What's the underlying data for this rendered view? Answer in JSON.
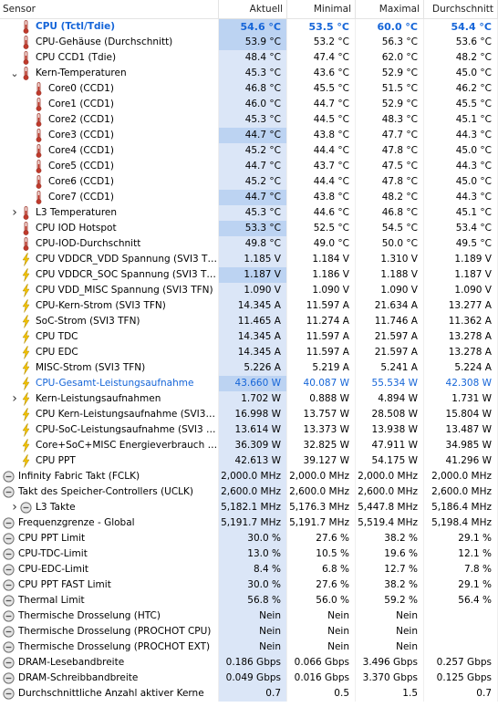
{
  "headers": {
    "sensor": "Sensor",
    "current": "Aktuell",
    "min": "Minimal",
    "max": "Maximal",
    "avg": "Durchschnitt"
  },
  "rows": [
    {
      "label": "CPU (Tctl/Tdie)",
      "icon": "thermometer-icon",
      "indent": 1,
      "cur": "54.6 °C",
      "min": "53.5 °C",
      "max": "60.0 °C",
      "avg": "54.4 °C",
      "style": "bold"
    },
    {
      "label": "CPU-Gehäuse (Durchschnitt)",
      "icon": "thermometer-icon",
      "indent": 1,
      "cur": "53.9 °C",
      "min": "53.2 °C",
      "max": "56.3 °C",
      "avg": "53.6 °C"
    },
    {
      "label": "CPU CCD1 (Tdie)",
      "icon": "thermometer-icon",
      "indent": 1,
      "cur": "48.4 °C",
      "min": "47.4 °C",
      "max": "62.0 °C",
      "avg": "48.2 °C"
    },
    {
      "label": "Kern-Temperaturen",
      "icon": "thermometer-icon",
      "indent": 1,
      "expander": "expanded",
      "cur": "45.3 °C",
      "min": "43.6 °C",
      "max": "52.9 °C",
      "avg": "45.0 °C"
    },
    {
      "label": "Core0 (CCD1)",
      "icon": "thermometer-icon",
      "indent": 2,
      "cur": "46.8 °C",
      "min": "45.5 °C",
      "max": "51.5 °C",
      "avg": "46.2 °C"
    },
    {
      "label": "Core1 (CCD1)",
      "icon": "thermometer-icon",
      "indent": 2,
      "cur": "46.0 °C",
      "min": "44.7 °C",
      "max": "52.9 °C",
      "avg": "45.5 °C"
    },
    {
      "label": "Core2 (CCD1)",
      "icon": "thermometer-icon",
      "indent": 2,
      "cur": "45.3 °C",
      "min": "44.5 °C",
      "max": "48.3 °C",
      "avg": "45.1 °C"
    },
    {
      "label": "Core3 (CCD1)",
      "icon": "thermometer-icon",
      "indent": 2,
      "cur": "44.7 °C",
      "min": "43.8 °C",
      "max": "47.7 °C",
      "avg": "44.3 °C"
    },
    {
      "label": "Core4 (CCD1)",
      "icon": "thermometer-icon",
      "indent": 2,
      "cur": "45.2 °C",
      "min": "44.4 °C",
      "max": "47.8 °C",
      "avg": "45.0 °C"
    },
    {
      "label": "Core5 (CCD1)",
      "icon": "thermometer-icon",
      "indent": 2,
      "cur": "44.7 °C",
      "min": "43.7 °C",
      "max": "47.5 °C",
      "avg": "44.3 °C"
    },
    {
      "label": "Core6 (CCD1)",
      "icon": "thermometer-icon",
      "indent": 2,
      "cur": "45.2 °C",
      "min": "44.4 °C",
      "max": "47.8 °C",
      "avg": "45.0 °C"
    },
    {
      "label": "Core7 (CCD1)",
      "icon": "thermometer-icon",
      "indent": 2,
      "cur": "44.7 °C",
      "min": "43.8 °C",
      "max": "48.2 °C",
      "avg": "44.3 °C"
    },
    {
      "label": "L3 Temperaturen",
      "icon": "thermometer-icon",
      "indent": 1,
      "expander": "collapsed",
      "cur": "45.3 °C",
      "min": "44.6 °C",
      "max": "46.8 °C",
      "avg": "45.1 °C"
    },
    {
      "label": "CPU IOD Hotspot",
      "icon": "thermometer-icon",
      "indent": 1,
      "cur": "53.3 °C",
      "min": "52.5 °C",
      "max": "54.5 °C",
      "avg": "53.4 °C"
    },
    {
      "label": "CPU-IOD-Durchschnitt",
      "icon": "thermometer-icon",
      "indent": 1,
      "cur": "49.8 °C",
      "min": "49.0 °C",
      "max": "50.0 °C",
      "avg": "49.5 °C"
    },
    {
      "label": "CPU VDDCR_VDD Spannung (SVI3 TFN)",
      "icon": "lightning-icon",
      "indent": 1,
      "cur": "1.185 V",
      "min": "1.184 V",
      "max": "1.310 V",
      "avg": "1.189 V"
    },
    {
      "label": "CPU VDDCR_SOC Spannung (SVI3 TFN)",
      "icon": "lightning-icon",
      "indent": 1,
      "cur": "1.187 V",
      "min": "1.186 V",
      "max": "1.188 V",
      "avg": "1.187 V"
    },
    {
      "label": "CPU VDD_MISC Spannung (SVI3 TFN)",
      "icon": "lightning-icon",
      "indent": 1,
      "cur": "1.090 V",
      "min": "1.090 V",
      "max": "1.090 V",
      "avg": "1.090 V"
    },
    {
      "label": "CPU-Kern-Strom (SVI3 TFN)",
      "icon": "lightning-icon",
      "indent": 1,
      "cur": "14.345 A",
      "min": "11.597 A",
      "max": "21.634 A",
      "avg": "13.277 A"
    },
    {
      "label": "SoC-Strom (SVI3 TFN)",
      "icon": "lightning-icon",
      "indent": 1,
      "cur": "11.465 A",
      "min": "11.274 A",
      "max": "11.746 A",
      "avg": "11.362 A"
    },
    {
      "label": "CPU TDC",
      "icon": "lightning-icon",
      "indent": 1,
      "cur": "14.345 A",
      "min": "11.597 A",
      "max": "21.597 A",
      "avg": "13.278 A"
    },
    {
      "label": "CPU EDC",
      "icon": "lightning-icon",
      "indent": 1,
      "cur": "14.345 A",
      "min": "11.597 A",
      "max": "21.597 A",
      "avg": "13.278 A"
    },
    {
      "label": "MISC-Strom (SVI3 TFN)",
      "icon": "lightning-icon",
      "indent": 1,
      "cur": "5.226 A",
      "min": "5.219 A",
      "max": "5.241 A",
      "avg": "5.224 A"
    },
    {
      "label": "CPU-Gesamt-Leistungsaufnahme",
      "icon": "lightning-icon",
      "indent": 1,
      "cur": "43.660 W",
      "min": "40.087 W",
      "max": "55.534 W",
      "avg": "42.308 W",
      "style": "blue"
    },
    {
      "label": "Kern-Leistungsaufnahmen",
      "icon": "lightning-icon",
      "indent": 1,
      "expander": "collapsed",
      "cur": "1.702 W",
      "min": "0.888 W",
      "max": "4.894 W",
      "avg": "1.731 W"
    },
    {
      "label": "CPU Kern-Leistungsaufnahme (SVI3 TFN)",
      "icon": "lightning-icon",
      "indent": 1,
      "cur": "16.998 W",
      "min": "13.757 W",
      "max": "28.508 W",
      "avg": "15.804 W"
    },
    {
      "label": "CPU-SoC-Leistungsaufnahme (SVI3 TFN)",
      "icon": "lightning-icon",
      "indent": 1,
      "cur": "13.614 W",
      "min": "13.373 W",
      "max": "13.938 W",
      "avg": "13.487 W"
    },
    {
      "label": "Core+SoC+MISC Energieverbrauch (S...",
      "icon": "lightning-icon",
      "indent": 1,
      "cur": "36.309 W",
      "min": "32.825 W",
      "max": "47.911 W",
      "avg": "34.985 W"
    },
    {
      "label": "CPU PPT",
      "icon": "lightning-icon",
      "indent": 1,
      "cur": "42.613 W",
      "min": "39.127 W",
      "max": "54.175 W",
      "avg": "41.296 W"
    },
    {
      "label": "Infinity Fabric Takt (FCLK)",
      "icon": "clock-icon",
      "indent": 0,
      "cur": "2,000.0 MHz",
      "min": "2,000.0 MHz",
      "max": "2,000.0 MHz",
      "avg": "2,000.0 MHz"
    },
    {
      "label": "Takt des Speicher-Controllers (UCLK)",
      "icon": "clock-icon",
      "indent": 0,
      "cur": "2,600.0 MHz",
      "min": "2,600.0 MHz",
      "max": "2,600.0 MHz",
      "avg": "2,600.0 MHz"
    },
    {
      "label": "L3 Takte",
      "icon": "clock-icon",
      "indent": 1,
      "expander": "collapsed",
      "cur": "5,182.1 MHz",
      "min": "5,176.3 MHz",
      "max": "5,447.8 MHz",
      "avg": "5,186.4 MHz"
    },
    {
      "label": "Frequenzgrenze - Global",
      "icon": "clock-icon",
      "indent": 0,
      "cur": "5,191.7 MHz",
      "min": "5,191.7 MHz",
      "max": "5,519.4 MHz",
      "avg": "5,198.4 MHz"
    },
    {
      "label": "CPU PPT Limit",
      "icon": "clock-icon",
      "indent": 0,
      "cur": "30.0 %",
      "min": "27.6 %",
      "max": "38.2 %",
      "avg": "29.1 %"
    },
    {
      "label": "CPU-TDC-Limit",
      "icon": "clock-icon",
      "indent": 0,
      "cur": "13.0 %",
      "min": "10.5 %",
      "max": "19.6 %",
      "avg": "12.1 %"
    },
    {
      "label": "CPU-EDC-Limit",
      "icon": "clock-icon",
      "indent": 0,
      "cur": "8.4 %",
      "min": "6.8 %",
      "max": "12.7 %",
      "avg": "7.8 %"
    },
    {
      "label": "CPU PPT FAST Limit",
      "icon": "clock-icon",
      "indent": 0,
      "cur": "30.0 %",
      "min": "27.6 %",
      "max": "38.2 %",
      "avg": "29.1 %"
    },
    {
      "label": "Thermal Limit",
      "icon": "clock-icon",
      "indent": 0,
      "cur": "56.8 %",
      "min": "56.0 %",
      "max": "59.2 %",
      "avg": "56.4 %"
    },
    {
      "label": "Thermische Drosselung (HTC)",
      "icon": "clock-icon",
      "indent": 0,
      "cur": "Nein",
      "min": "Nein",
      "max": "Nein",
      "avg": ""
    },
    {
      "label": "Thermische Drosselung (PROCHOT CPU)",
      "icon": "clock-icon",
      "indent": 0,
      "cur": "Nein",
      "min": "Nein",
      "max": "Nein",
      "avg": ""
    },
    {
      "label": "Thermische Drosselung (PROCHOT EXT)",
      "icon": "clock-icon",
      "indent": 0,
      "cur": "Nein",
      "min": "Nein",
      "max": "Nein",
      "avg": ""
    },
    {
      "label": "DRAM-Lesebandbreite",
      "icon": "clock-icon",
      "indent": 0,
      "cur": "0.186 Gbps",
      "min": "0.066 Gbps",
      "max": "3.496 Gbps",
      "avg": "0.257 Gbps"
    },
    {
      "label": "DRAM-Schreibbandbreite",
      "icon": "clock-icon",
      "indent": 0,
      "cur": "0.049 Gbps",
      "min": "0.016 Gbps",
      "max": "3.370 Gbps",
      "avg": "0.125 Gbps"
    },
    {
      "label": "Durchschnittliche Anzahl aktiver Kerne",
      "icon": "clock-icon",
      "indent": 0,
      "cur": "0.7",
      "min": "0.5",
      "max": "1.5",
      "avg": "0.7"
    }
  ],
  "highlighted_rows": [
    0,
    1,
    7,
    11,
    13,
    16,
    23
  ],
  "colors": {
    "accent": "#1565d8",
    "current_col": "#dbe6f7",
    "current_col_hi": "#bcd3f2",
    "thermometer": "#c0392b",
    "lightning": "#f2c200",
    "clock": "#7a7a7a"
  }
}
